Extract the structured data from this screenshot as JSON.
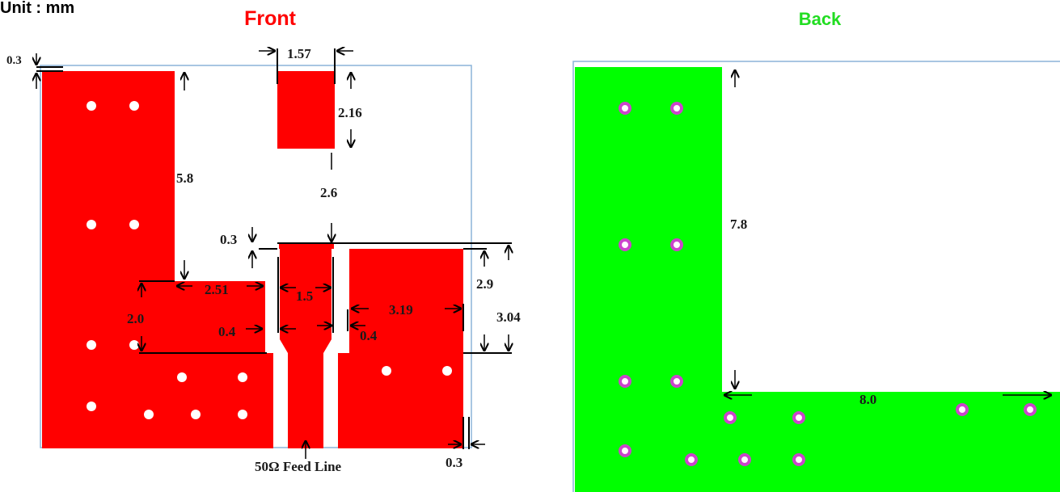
{
  "unit_label": "Unit : mm",
  "front": {
    "title": "Front",
    "color": "#ff0000",
    "dims": {
      "edge_top": "0.3",
      "top_patch_width": "1.57",
      "top_patch_height": "2.16",
      "left_arm_height": "5.8",
      "gap": "2.6",
      "gap_top": "0.3",
      "step_width": "2.51",
      "feed_width": "1.5",
      "right_block_width": "3.19",
      "step_height": "2.0",
      "gap_left": "0.4",
      "gap_right": "0.4",
      "right_height_a": "2.9",
      "right_height_b": "3.04",
      "edge_bottom": "0.3"
    },
    "feed_label": "50Ω Feed Line"
  },
  "back": {
    "title": "Back",
    "color": "#00ff00",
    "via_color": "#cc44cc",
    "dims": {
      "arm_height": "7.8",
      "arm_width": "8.0"
    }
  },
  "outline_color": "#8bb4d8"
}
